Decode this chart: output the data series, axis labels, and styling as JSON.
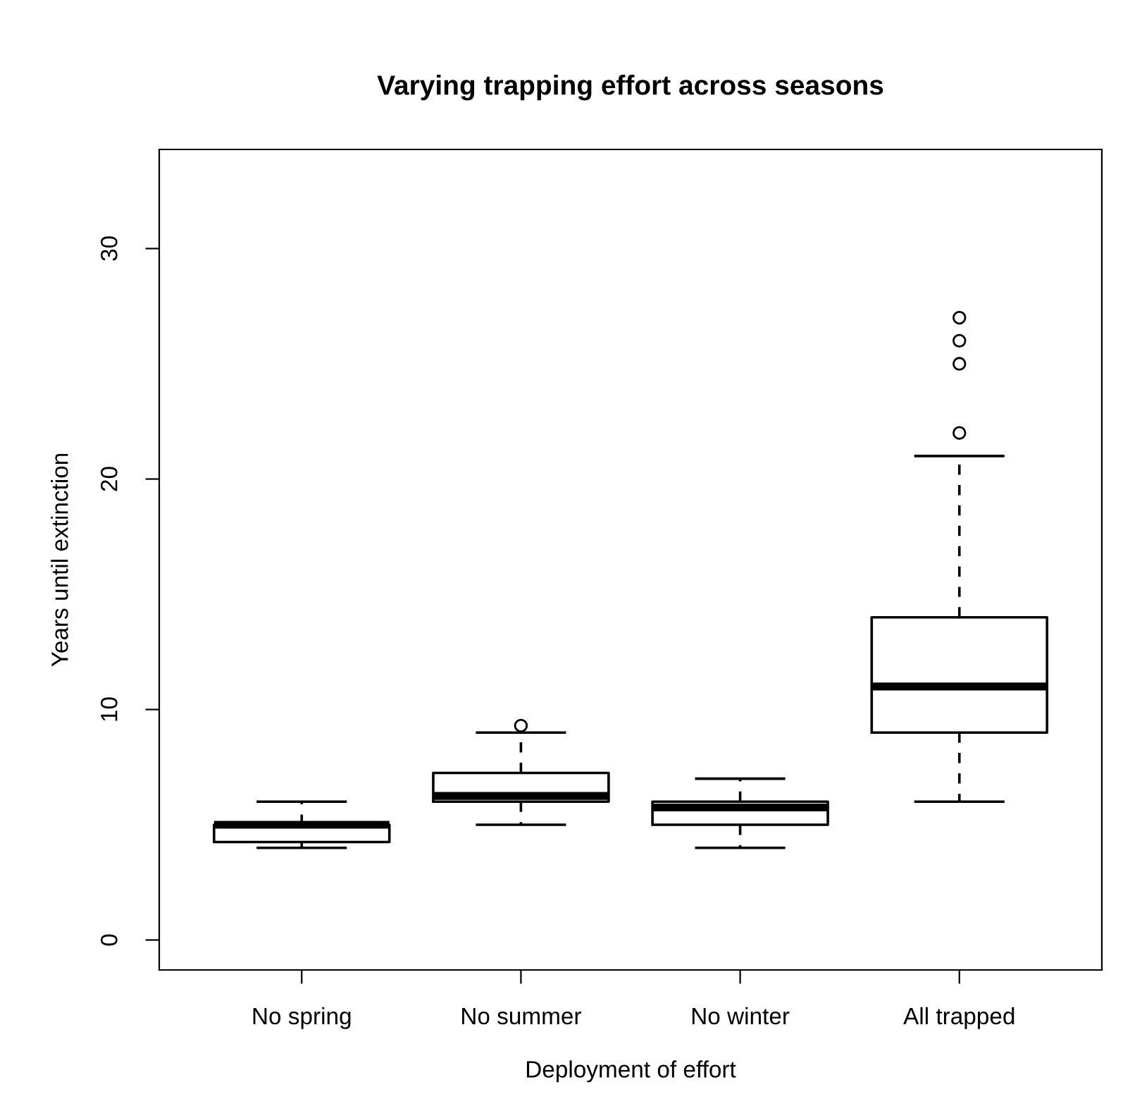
{
  "chart_data": {
    "type": "box",
    "title": "Varying trapping effort across seasons",
    "xlabel": "Deployment of effort",
    "ylabel": "Years until extinction",
    "categories": [
      "No spring",
      "No summer",
      "No winter",
      "All trapped"
    ],
    "boxes": [
      {
        "low": 4,
        "q1": 4.25,
        "median": 5,
        "q3": 5,
        "high": 6
      },
      {
        "low": 5,
        "q1": 6,
        "median": 6.25,
        "q3": 7.25,
        "high": 9,
        "outliers": [
          9.3
        ]
      },
      {
        "low": 4,
        "q1": 5,
        "median": 5.75,
        "q3": 6,
        "high": 7
      },
      {
        "low": 6,
        "q1": 9,
        "median": 11,
        "q3": 14,
        "high": 21,
        "outliers": [
          22,
          25,
          26,
          27
        ]
      }
    ],
    "color": "#000000",
    "ylim": [
      -1.3,
      34.3
    ],
    "yticks": [
      0,
      10,
      20,
      30
    ],
    "grid": false,
    "legend": false,
    "marker": "circle",
    "line_style": "dashed"
  }
}
